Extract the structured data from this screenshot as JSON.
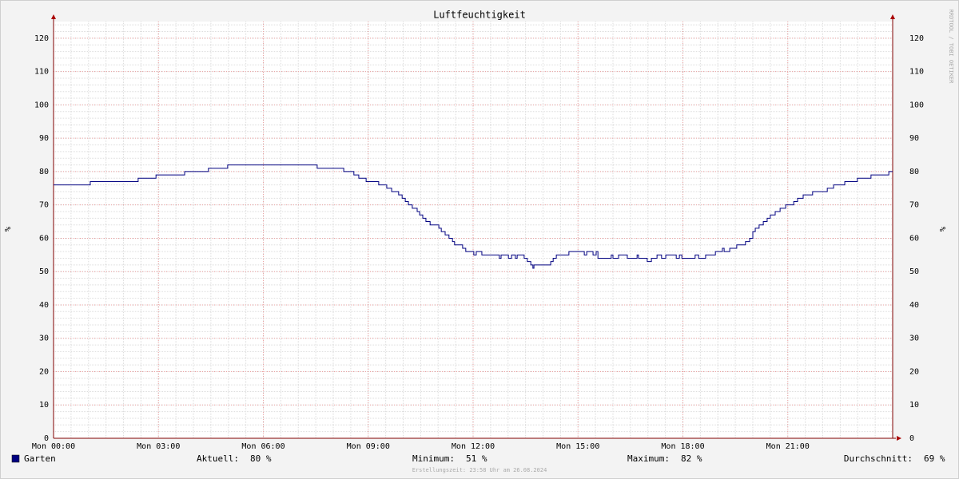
{
  "chart_data": {
    "type": "line",
    "title": "Luftfeuchtigkeit",
    "watermark": "RRDTOOL / TOBI OETIKER",
    "ylabel": "%",
    "y2label": "%",
    "xlim": [
      0,
      24
    ],
    "xticks": [
      {
        "value": 0,
        "label": "Mon 00:00"
      },
      {
        "value": 3,
        "label": "Mon 03:00"
      },
      {
        "value": 6,
        "label": "Mon 06:00"
      },
      {
        "value": 9,
        "label": "Mon 09:00"
      },
      {
        "value": 12,
        "label": "Mon 12:00"
      },
      {
        "value": 15,
        "label": "Mon 15:00"
      },
      {
        "value": 18,
        "label": "Mon 18:00"
      },
      {
        "value": 21,
        "label": "Mon 21:00"
      }
    ],
    "ylim": [
      0,
      125
    ],
    "yticks": [
      0,
      10,
      20,
      30,
      40,
      50,
      60,
      70,
      80,
      90,
      100,
      110,
      120
    ],
    "y2lim": [
      0,
      125
    ],
    "y2ticks": [
      0,
      10,
      20,
      30,
      40,
      50,
      60,
      70,
      80,
      90,
      100,
      110,
      120
    ],
    "grid": true,
    "step": true,
    "x": [
      0,
      1.05,
      2.42,
      2.93,
      3.75,
      4.43,
      4.98,
      7.54,
      8.3,
      8.59,
      8.73,
      8.94,
      9.3,
      9.53,
      9.67,
      9.87,
      9.97,
      10.06,
      10.15,
      10.26,
      10.4,
      10.47,
      10.56,
      10.65,
      10.77,
      11.02,
      11.09,
      11.2,
      11.31,
      11.41,
      11.47,
      11.7,
      11.79,
      12.02,
      12.09,
      12.25,
      12.75,
      12.8,
      13.01,
      13.1,
      13.21,
      13.26,
      13.46,
      13.55,
      13.65,
      13.71,
      13.74,
      14.22,
      14.29,
      14.38,
      14.74,
      15.18,
      15.25,
      15.43,
      15.52,
      15.57,
      15.95,
      16.0,
      16.16,
      16.41,
      16.69,
      16.73,
      16.98,
      17.1,
      17.26,
      17.39,
      17.51,
      17.81,
      17.9,
      17.97,
      18.35,
      18.45,
      18.65,
      18.93,
      19.13,
      19.18,
      19.34,
      19.54,
      19.79,
      19.91,
      20.0,
      20.07,
      20.18,
      20.3,
      20.41,
      20.5,
      20.64,
      20.78,
      20.94,
      21.17,
      21.28,
      21.44,
      21.71,
      22.13,
      22.31,
      22.63,
      22.99,
      23.38,
      23.89,
      24
    ],
    "series": [
      {
        "name": "Garten",
        "color": "#000080",
        "values": [
          76,
          77,
          78,
          79,
          80,
          81,
          82,
          81,
          80,
          79,
          78,
          77,
          76,
          75,
          74,
          73,
          72,
          71,
          70,
          69,
          68,
          67,
          66,
          65,
          64,
          63,
          62,
          61,
          60,
          59,
          58,
          57,
          56,
          55,
          56,
          55,
          54,
          55,
          54,
          55,
          54,
          55,
          54,
          53,
          52,
          51,
          52,
          53,
          54,
          55,
          56,
          55,
          56,
          55,
          56,
          54,
          55,
          54,
          55,
          54,
          55,
          54,
          53,
          54,
          55,
          54,
          55,
          54,
          55,
          54,
          55,
          54,
          55,
          56,
          57,
          56,
          57,
          58,
          59,
          60,
          62,
          63,
          64,
          65,
          66,
          67,
          68,
          69,
          70,
          71,
          72,
          73,
          74,
          75,
          76,
          77,
          78,
          79,
          80,
          80
        ]
      }
    ],
    "stats": [
      {
        "label": "Aktuell:",
        "value": "80 %"
      },
      {
        "label": "Minimum:",
        "value": "51 %"
      },
      {
        "label": "Maximum:",
        "value": "82 %"
      },
      {
        "label": "Durchschnitt:",
        "value": "69 %"
      }
    ],
    "footer": "Erstellungszeit: 23:58 Uhr am 26.08.2024"
  }
}
